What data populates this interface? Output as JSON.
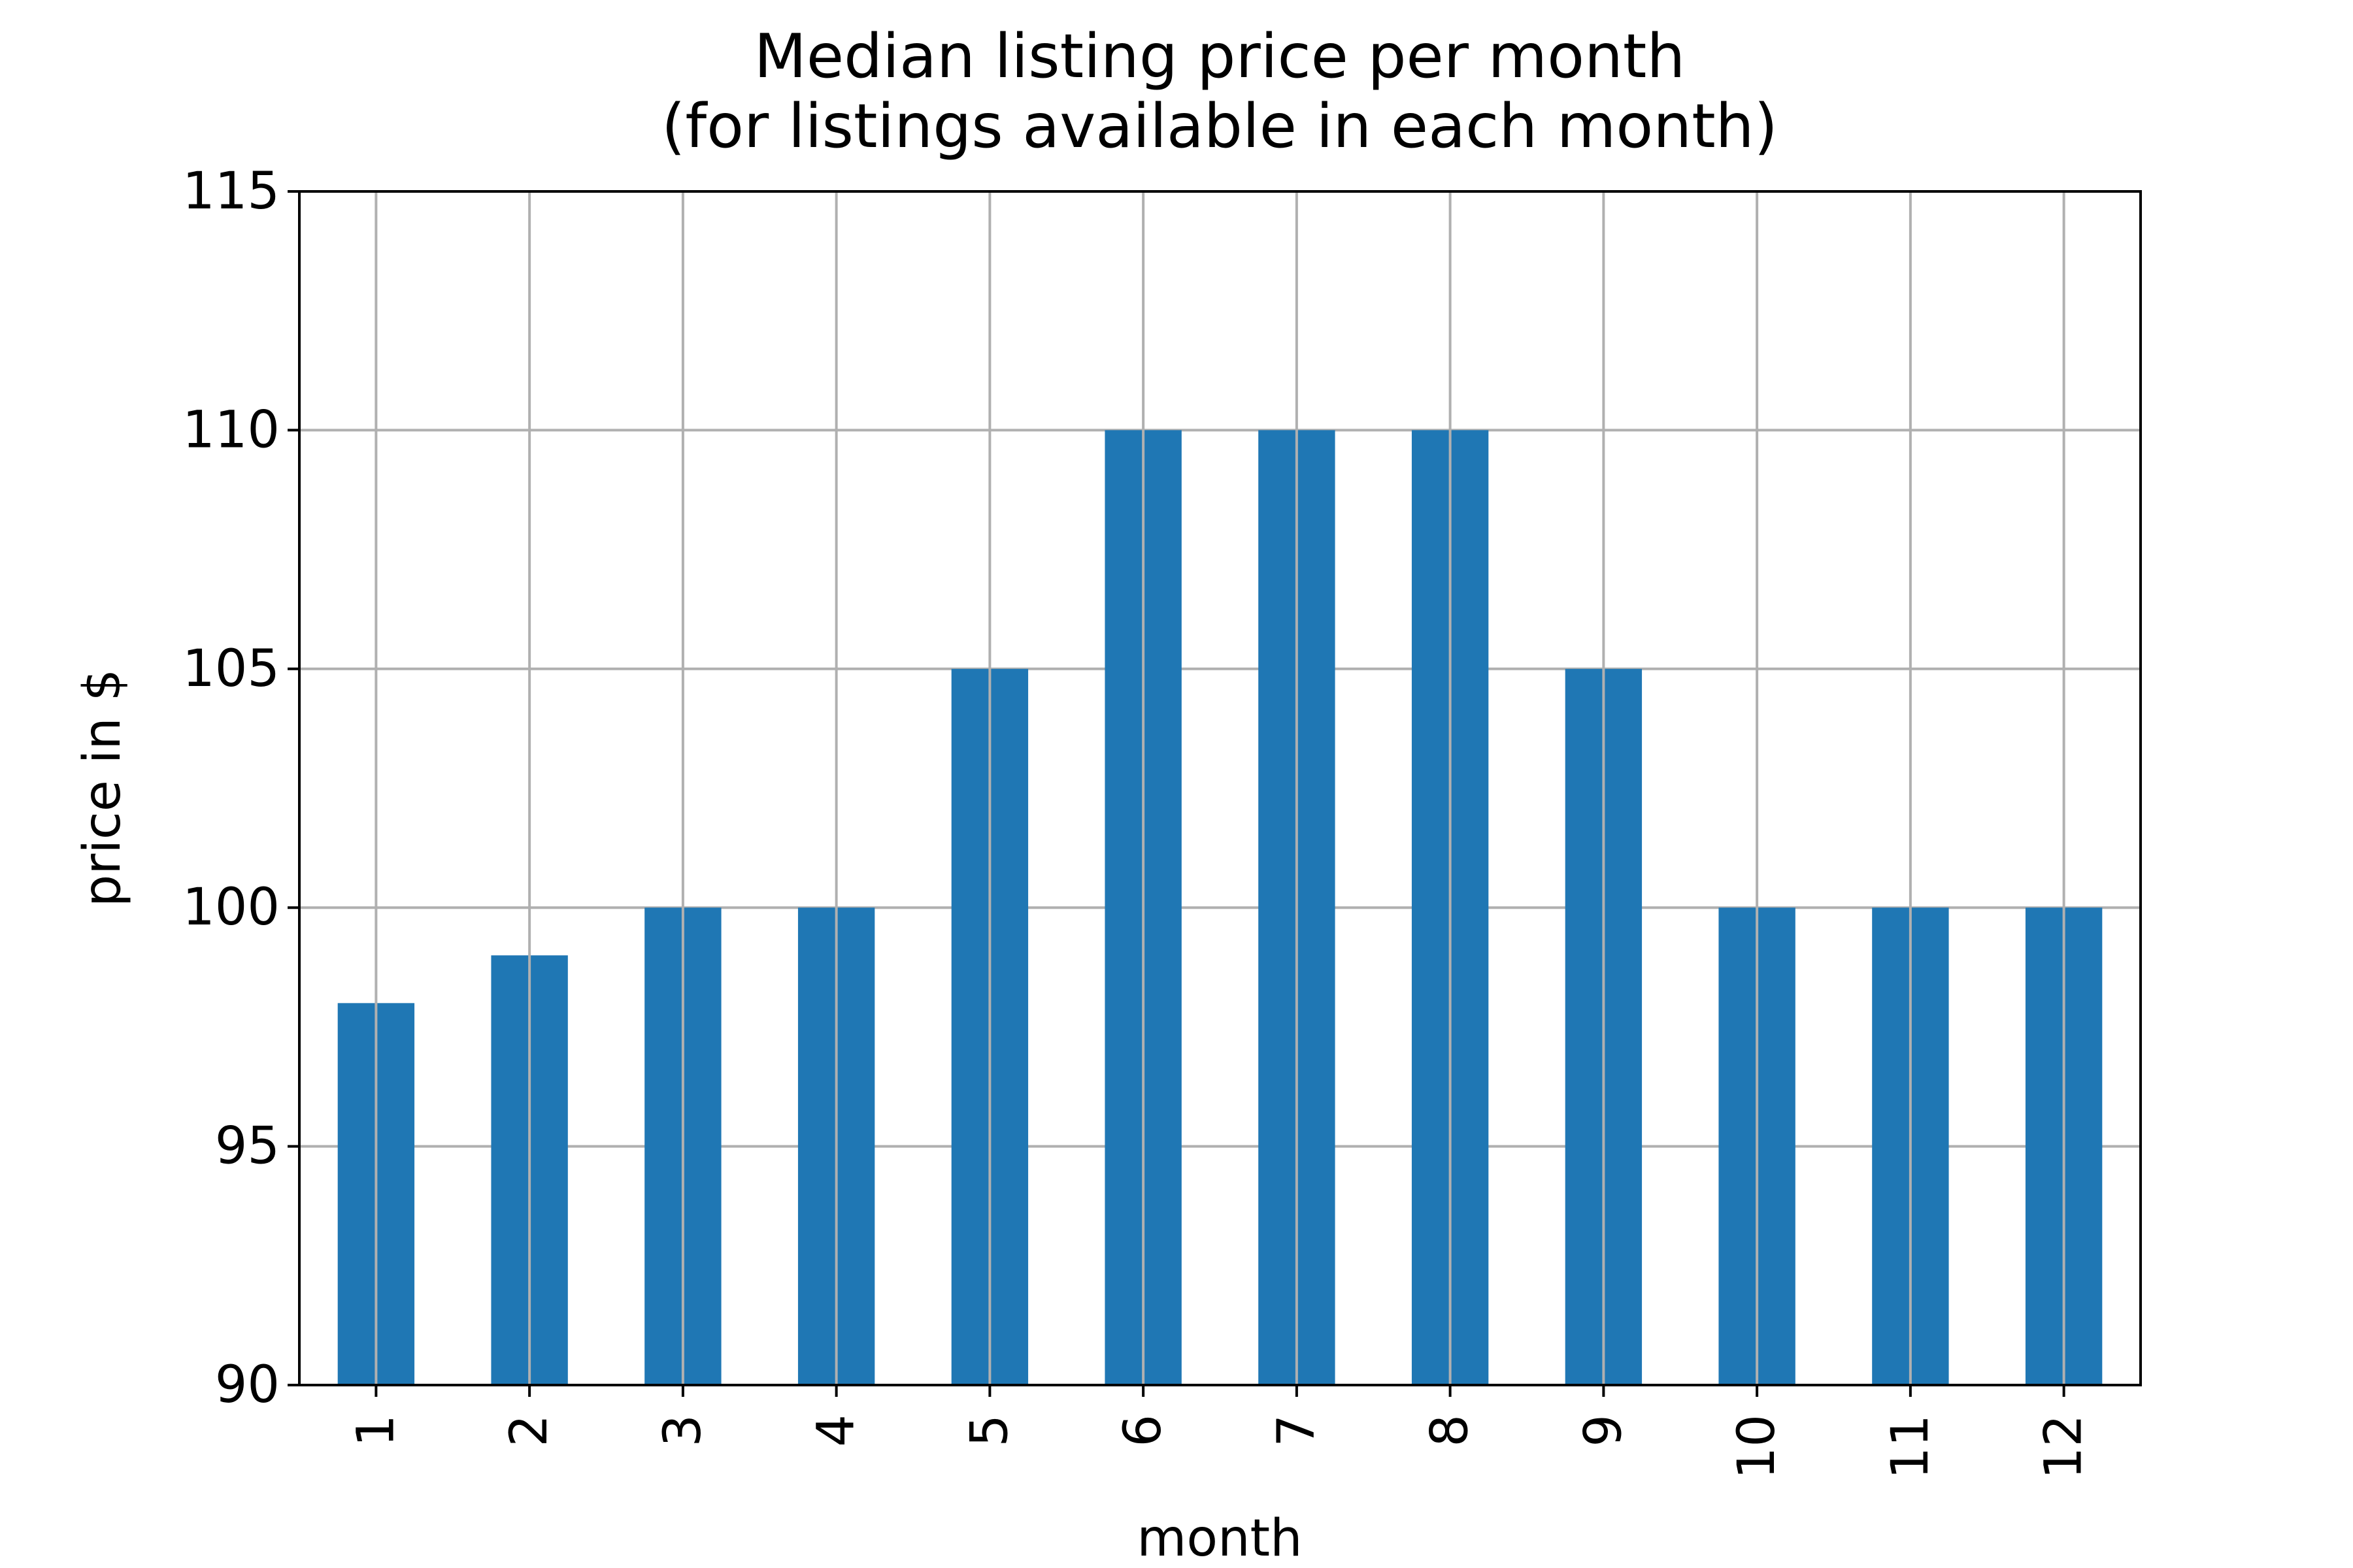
{
  "chart_data": {
    "type": "bar",
    "title": "Median listing price per month\n(for listings available in each month)",
    "title_lines": [
      "Median listing price per month",
      "(for listings available in each month)"
    ],
    "xlabel": "month",
    "ylabel": "price in $",
    "categories": [
      "1",
      "2",
      "3",
      "4",
      "5",
      "6",
      "7",
      "8",
      "9",
      "10",
      "11",
      "12"
    ],
    "values": [
      98,
      99,
      100,
      100,
      105,
      110,
      110,
      110,
      105,
      100,
      100,
      100
    ],
    "ylim": [
      90,
      115
    ],
    "yticks": [
      90,
      95,
      100,
      105,
      110,
      115
    ],
    "ytick_labels": [
      "90",
      "95",
      "100",
      "105",
      "110",
      "115"
    ],
    "grid": true,
    "legend": false,
    "x_tick_rotation": "vertical",
    "colors": {
      "bar": "#1f77b4",
      "grid": "#b0b0b0",
      "axes": "#000000"
    }
  }
}
